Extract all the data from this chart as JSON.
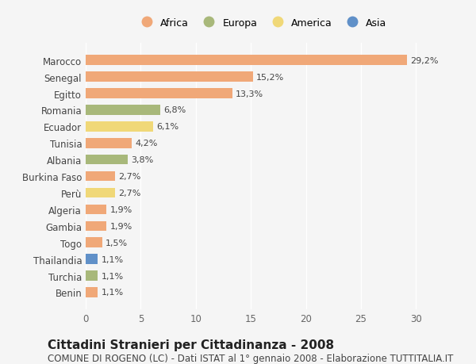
{
  "countries": [
    "Marocco",
    "Senegal",
    "Egitto",
    "Romania",
    "Ecuador",
    "Tunisia",
    "Albania",
    "Burkina Faso",
    "Perù",
    "Algeria",
    "Gambia",
    "Togo",
    "Thailandia",
    "Turchia",
    "Benin"
  ],
  "values": [
    29.2,
    15.2,
    13.3,
    6.8,
    6.1,
    4.2,
    3.8,
    2.7,
    2.7,
    1.9,
    1.9,
    1.5,
    1.1,
    1.1,
    1.1
  ],
  "labels": [
    "29,2%",
    "15,2%",
    "13,3%",
    "6,8%",
    "6,1%",
    "4,2%",
    "3,8%",
    "2,7%",
    "2,7%",
    "1,9%",
    "1,9%",
    "1,5%",
    "1,1%",
    "1,1%",
    "1,1%"
  ],
  "continents": [
    "Africa",
    "Africa",
    "Africa",
    "Europa",
    "America",
    "Africa",
    "Europa",
    "Africa",
    "America",
    "Africa",
    "Africa",
    "Africa",
    "Asia",
    "Europa",
    "Africa"
  ],
  "continent_colors": {
    "Africa": "#F0A878",
    "Europa": "#A8B87A",
    "America": "#F0D878",
    "Asia": "#6090C8"
  },
  "legend_entries": [
    "Africa",
    "Europa",
    "America",
    "Asia"
  ],
  "xlim": [
    0,
    32
  ],
  "xticks": [
    0,
    5,
    10,
    15,
    20,
    25,
    30
  ],
  "background_color": "#f5f5f5",
  "title": "Cittadini Stranieri per Cittadinanza - 2008",
  "subtitle": "COMUNE DI ROGENO (LC) - Dati ISTAT al 1° gennaio 2008 - Elaborazione TUTTITALIA.IT",
  "title_fontsize": 11,
  "subtitle_fontsize": 8.5,
  "bar_height": 0.6
}
